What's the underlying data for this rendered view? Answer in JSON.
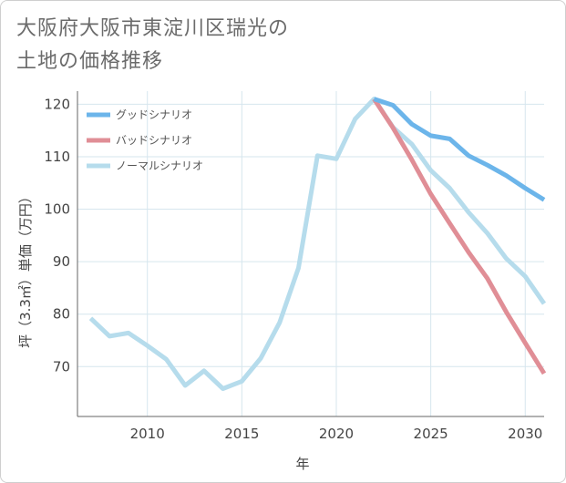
{
  "title_line1": "大阪府大阪市東淀川区瑞光の",
  "title_line2": "土地の価格推移",
  "colors": {
    "good": "#6cb5ea",
    "bad": "#e08e96",
    "normal": "#b6dcec",
    "grid": "#d6e6ee",
    "axis": "#666666"
  },
  "chart_data": {
    "type": "line",
    "xlabel": "年",
    "ylabel": "坪（3.3㎡）単価（万円）",
    "xlim": [
      2006.3,
      2031
    ],
    "ylim": [
      60.5,
      122.5
    ],
    "x_ticks": [
      2010,
      2015,
      2020,
      2025,
      2030
    ],
    "y_ticks": [
      70,
      80,
      90,
      100,
      110,
      120
    ],
    "grid": true,
    "legend_position": "top-left",
    "series": [
      {
        "name": "グッドシナリオ",
        "color_key": "good",
        "x": [
          2022,
          2023,
          2024,
          2025,
          2026,
          2027,
          2028,
          2029,
          2030,
          2031
        ],
        "y": [
          121.0,
          119.8,
          116.2,
          114.0,
          113.4,
          110.2,
          108.4,
          106.4,
          104.0,
          101.8
        ]
      },
      {
        "name": "バッドシナリオ",
        "color_key": "bad",
        "x": [
          2022,
          2023,
          2024,
          2025,
          2026,
          2027,
          2028,
          2029,
          2030,
          2031
        ],
        "y": [
          121.0,
          115.5,
          109.4,
          102.9,
          97.3,
          91.8,
          86.8,
          80.4,
          74.5,
          68.7
        ]
      },
      {
        "name": "ノーマルシナリオ",
        "color_key": "normal",
        "x": [
          2007,
          2008,
          2009,
          2010,
          2011,
          2012,
          2013,
          2014,
          2015,
          2016,
          2017,
          2018,
          2019,
          2020,
          2021,
          2022,
          2023,
          2024,
          2025,
          2026,
          2027,
          2028,
          2029,
          2030,
          2031
        ],
        "y": [
          79.2,
          75.8,
          76.4,
          74.0,
          71.4,
          66.4,
          69.2,
          65.8,
          67.2,
          71.6,
          78.4,
          88.8,
          110.2,
          109.6,
          117.2,
          121.0,
          115.6,
          112.4,
          107.4,
          104.0,
          99.4,
          95.4,
          90.6,
          87.2,
          82.0
        ]
      }
    ]
  }
}
